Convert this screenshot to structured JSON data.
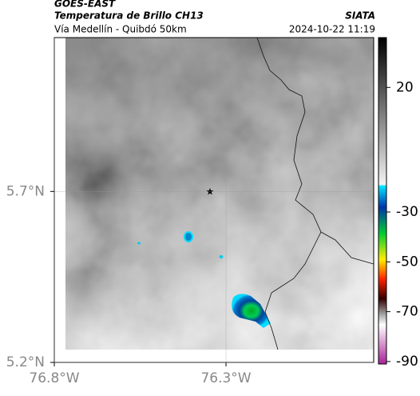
{
  "header": {
    "satellite": "GOES-EAST",
    "product": "Temperatura de Brillo CH13",
    "source": "SIATA",
    "route": "Vía Medellín - Quibdó 50km",
    "datetime": "2024-10-22 11:19"
  },
  "map": {
    "xlim": [
      -76.8,
      -75.87
    ],
    "ylim": [
      5.2,
      6.15
    ],
    "xticks": [
      {
        "value": -76.8,
        "label": "76.8°W"
      },
      {
        "value": -76.3,
        "label": "76.3°W"
      }
    ],
    "yticks": [
      {
        "value": 5.2,
        "label": "5.2°N"
      },
      {
        "value": 5.7,
        "label": "5.7°N"
      }
    ],
    "grid": true
  },
  "colorbar": {
    "lim": [
      -91,
      40
    ],
    "ticks": [
      20,
      -30,
      -50,
      -70,
      -90
    ]
  }
}
